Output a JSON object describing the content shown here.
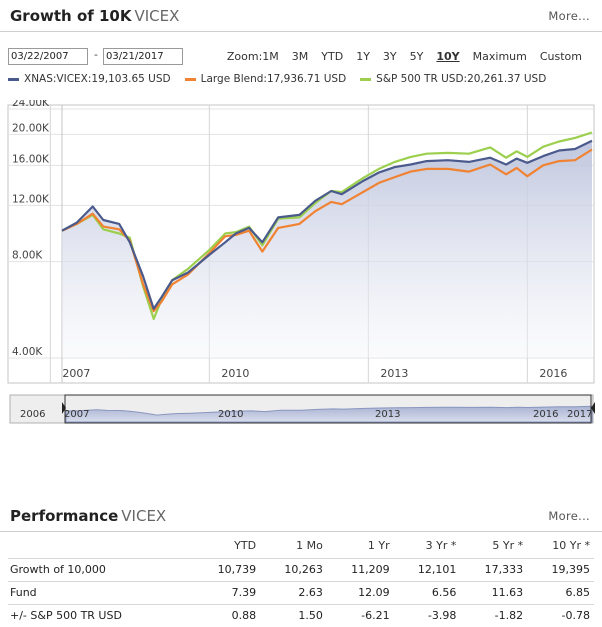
{
  "growth": {
    "title": "Growth of 10K",
    "ticker": "VICEX",
    "more": "More...",
    "start_date": "03/22/2007",
    "end_date": "03/21/2017",
    "date_separator": "-",
    "zoom_label": "Zoom:",
    "zoom_options": [
      "1M",
      "3M",
      "YTD",
      "1Y",
      "3Y",
      "5Y",
      "10Y",
      "Maximum",
      "Custom"
    ],
    "active_zoom": "10Y",
    "legend": [
      {
        "label": "XNAS:VICEX:19,103.65 USD",
        "color": "#4a5a8c"
      },
      {
        "label": "Large Blend:17,936.71 USD",
        "color": "#f08232"
      },
      {
        "label": "S&P 500 TR USD:20,261.37 USD",
        "color": "#9ccf4e"
      }
    ]
  },
  "chart_data": {
    "type": "line",
    "y_scale": "log",
    "ylim": [
      4000,
      24000
    ],
    "y_ticks": [
      4000,
      8000,
      12000,
      16000,
      20000,
      24000
    ],
    "y_tick_labels": [
      "4.00K",
      "8.00K",
      "12.00K",
      "16.00K",
      "20.00K",
      "24.00K"
    ],
    "xlim": [
      2007.22,
      2017.22
    ],
    "x_ticks": [
      2007,
      2010,
      2013,
      2016
    ],
    "x_tick_labels": [
      "2007",
      "2010",
      "2013",
      "2016"
    ],
    "x": [
      2007.22,
      2007.5,
      2007.8,
      2008.0,
      2008.3,
      2008.5,
      2008.75,
      2008.95,
      2009.1,
      2009.3,
      2009.6,
      2010.0,
      2010.3,
      2010.5,
      2010.75,
      2011.0,
      2011.3,
      2011.7,
      2012.0,
      2012.3,
      2012.5,
      2012.9,
      2013.2,
      2013.5,
      2013.8,
      2014.1,
      2014.5,
      2014.9,
      2015.3,
      2015.6,
      2015.8,
      2016.0,
      2016.3,
      2016.6,
      2016.9,
      2017.22
    ],
    "series": [
      {
        "name": "XNAS:VICEX",
        "color": "#4a5a8c",
        "values": [
          10000,
          10600,
          11900,
          10800,
          10500,
          9200,
          7200,
          5700,
          6200,
          7000,
          7400,
          8400,
          9200,
          9800,
          10200,
          9200,
          11000,
          11200,
          12400,
          13300,
          13000,
          14300,
          15200,
          15800,
          16100,
          16500,
          16600,
          16400,
          16900,
          16100,
          16800,
          16300,
          17100,
          17800,
          18000,
          19104
        ]
      },
      {
        "name": "Large Blend",
        "color": "#f08232",
        "values": [
          10000,
          10500,
          11300,
          10300,
          10100,
          9300,
          6800,
          5600,
          6000,
          6800,
          7300,
          8500,
          9600,
          9700,
          10000,
          8600,
          10200,
          10500,
          11500,
          12300,
          12100,
          13200,
          14100,
          14700,
          15300,
          15600,
          15600,
          15300,
          16100,
          15000,
          15700,
          14800,
          16000,
          16500,
          16600,
          17937
        ]
      },
      {
        "name": "S&P 500 TR USD",
        "color": "#9ccf4e",
        "values": [
          10000,
          10500,
          11200,
          10100,
          9800,
          9500,
          6700,
          5300,
          6100,
          7000,
          7600,
          8700,
          9800,
          9900,
          10300,
          9000,
          10900,
          11000,
          12200,
          13300,
          13200,
          14600,
          15600,
          16400,
          17000,
          17400,
          17500,
          17400,
          18200,
          16900,
          17700,
          17000,
          18300,
          19000,
          19500,
          20261
        ]
      }
    ],
    "navigator_labels": [
      "2006",
      "2007",
      "2010",
      "2013",
      "2016",
      "2017"
    ]
  },
  "performance": {
    "title": "Performance",
    "ticker": "VICEX",
    "more": "More...",
    "columns": [
      "",
      "YTD",
      "1 Mo",
      "1 Yr",
      "3 Yr *",
      "5 Yr *",
      "10 Yr *"
    ],
    "rows": [
      {
        "label": "Growth of 10,000",
        "values": [
          "10,739",
          "10,263",
          "11,209",
          "12,101",
          "17,333",
          "19,395"
        ]
      },
      {
        "label": "Fund",
        "values": [
          "7.39",
          "2.63",
          "12.09",
          "6.56",
          "11.63",
          "6.85"
        ]
      },
      {
        "label": "+/- S&P 500 TR USD",
        "values": [
          "0.88",
          "1.50",
          "-6.21",
          "-3.98",
          "-1.82",
          "-0.78"
        ]
      }
    ]
  }
}
